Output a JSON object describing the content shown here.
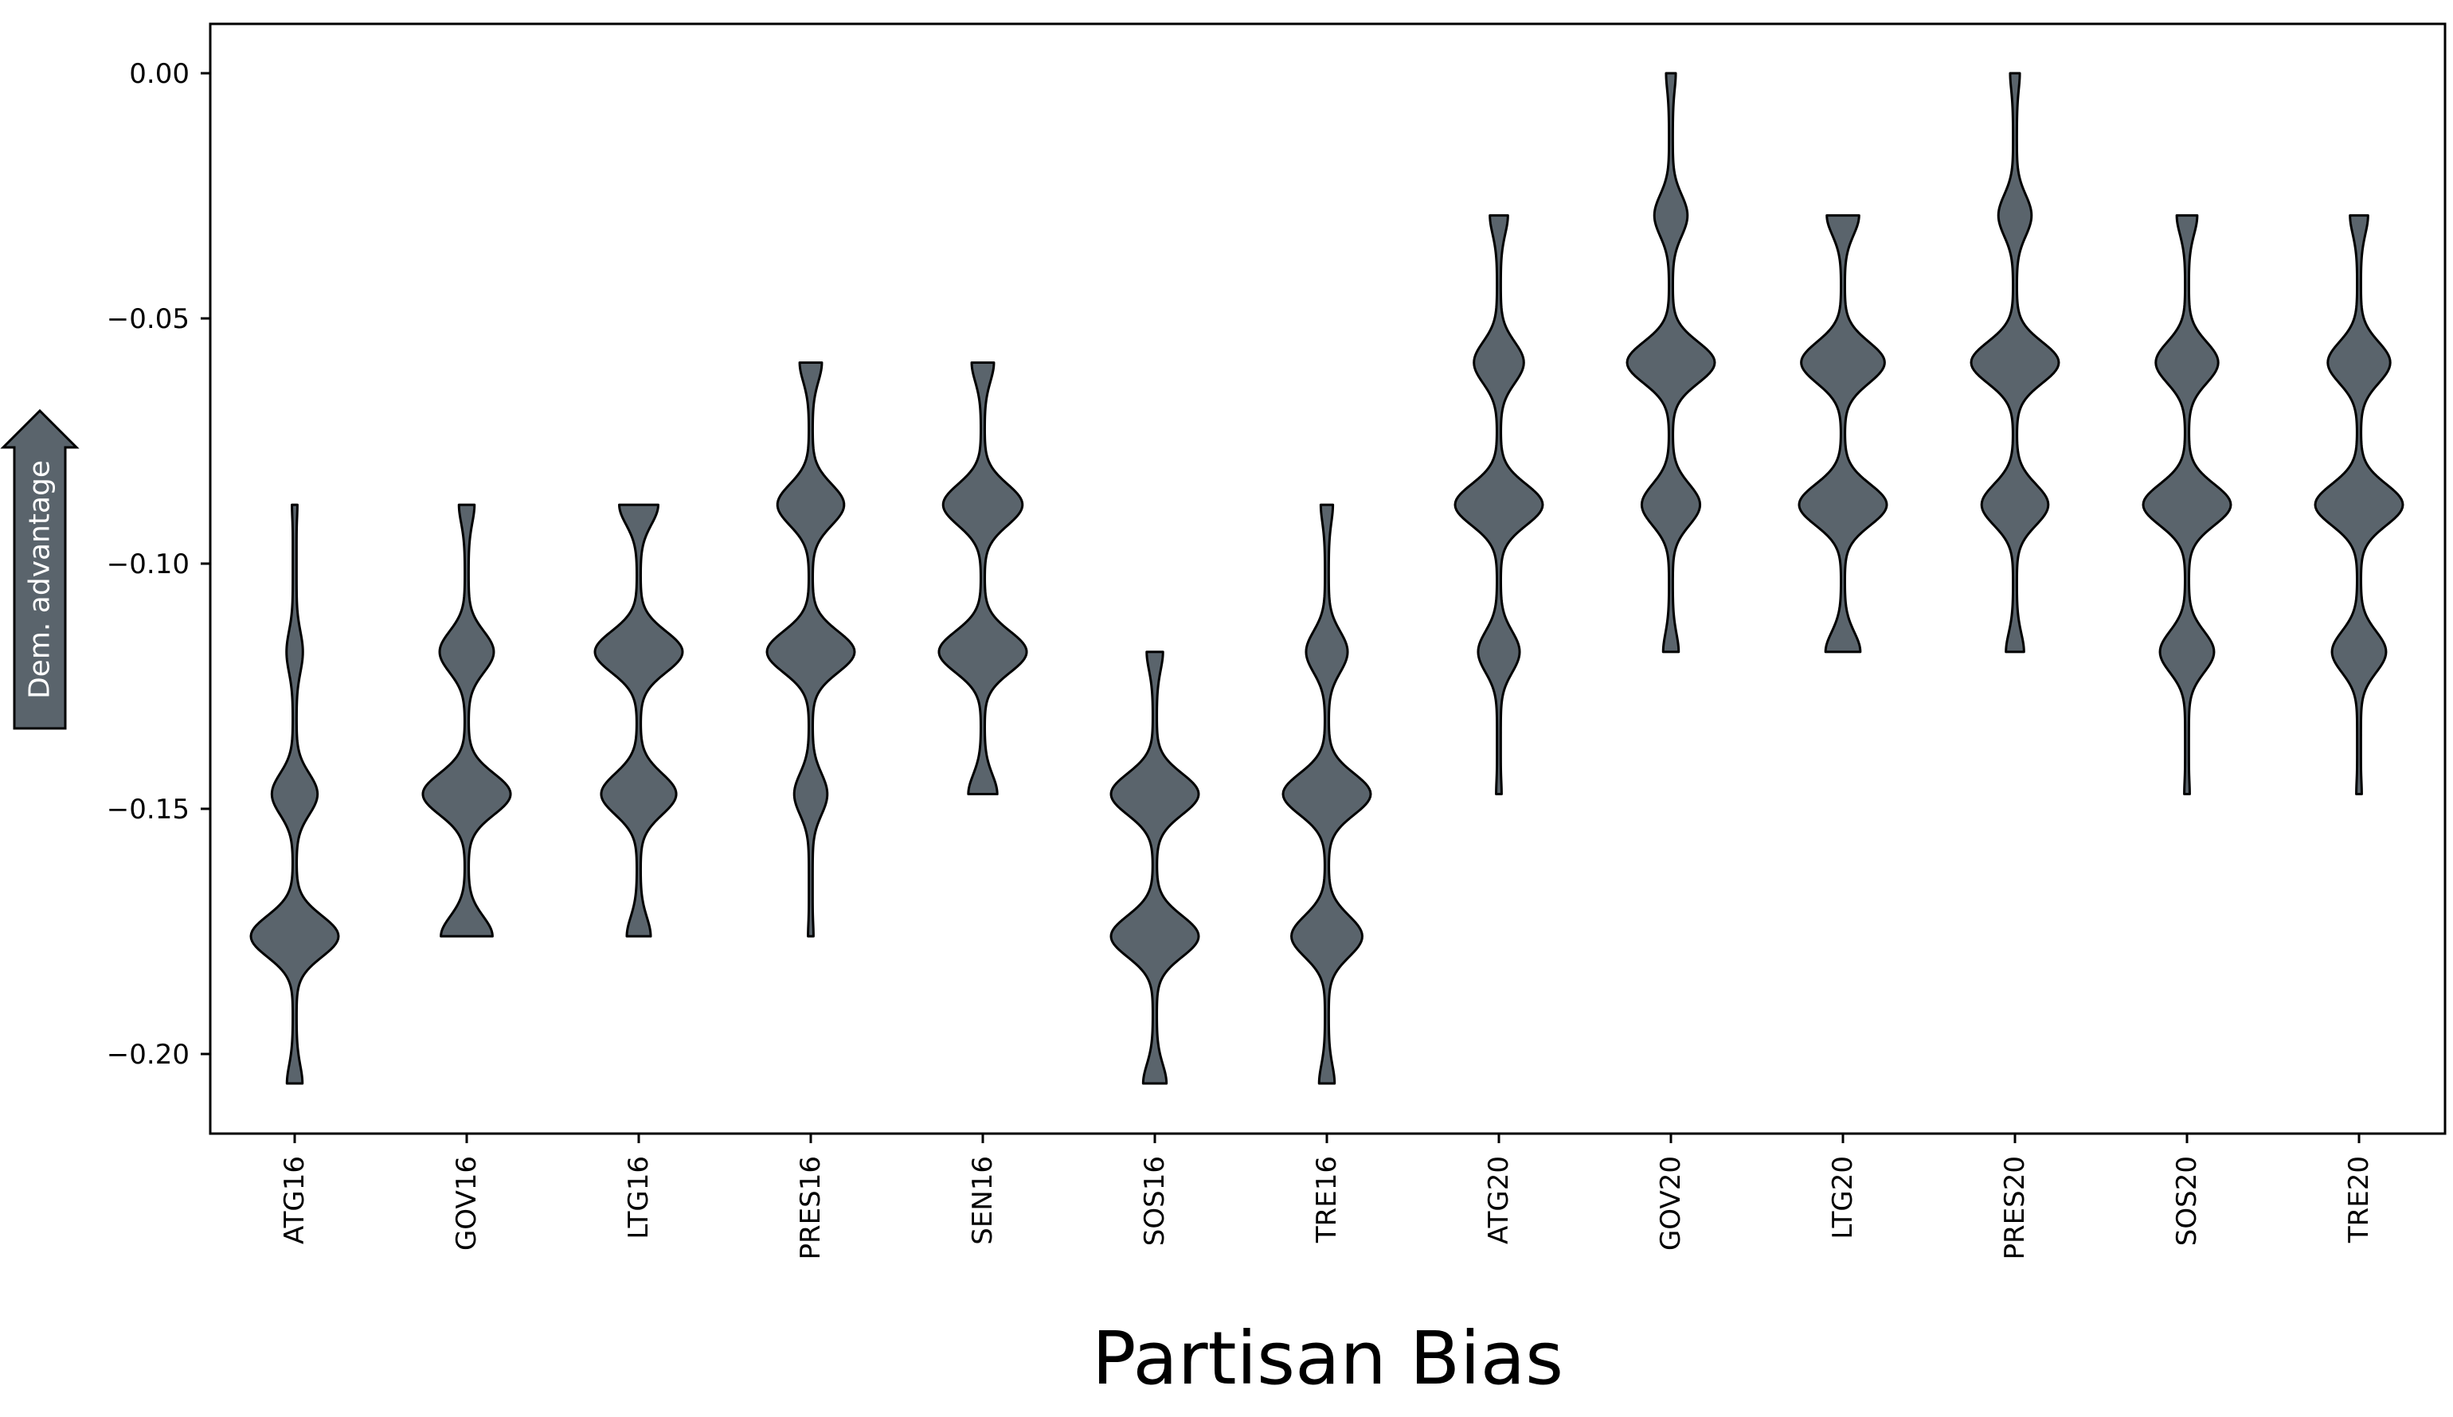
{
  "chart_data": {
    "type": "violin",
    "xlabel": "Partisan Bias",
    "ylabel": "",
    "ylim": [
      -0.216,
      0.01
    ],
    "yticks": [
      0.0,
      -0.05,
      -0.1,
      -0.15,
      -0.2
    ],
    "ytick_labels": [
      "0.00",
      "−0.05",
      "−0.10",
      "−0.15",
      "−0.20"
    ],
    "grid": false,
    "categories": [
      "ATG16",
      "GOV16",
      "LTG16",
      "PRES16",
      "SEN16",
      "SOS16",
      "TRE16",
      "ATG20",
      "GOV20",
      "LTG20",
      "PRES20",
      "SOS20",
      "TRE20"
    ],
    "series": [
      {
        "min": -0.206,
        "max": -0.088,
        "modes": [
          [
            -0.118,
            0.15
          ],
          [
            -0.147,
            0.5
          ],
          [
            -0.176,
            1.0
          ],
          [
            -0.206,
            0.12
          ]
        ]
      },
      {
        "min": -0.176,
        "max": -0.088,
        "modes": [
          [
            -0.088,
            0.12
          ],
          [
            -0.118,
            0.6
          ],
          [
            -0.147,
            1.0
          ],
          [
            -0.176,
            0.55
          ]
        ]
      },
      {
        "min": -0.176,
        "max": -0.088,
        "modes": [
          [
            -0.088,
            0.4
          ],
          [
            -0.118,
            1.0
          ],
          [
            -0.147,
            0.85
          ],
          [
            -0.176,
            0.22
          ]
        ]
      },
      {
        "min": -0.176,
        "max": -0.059,
        "modes": [
          [
            -0.059,
            0.2
          ],
          [
            -0.088,
            0.75
          ],
          [
            -0.118,
            1.0
          ],
          [
            -0.147,
            0.35
          ]
        ]
      },
      {
        "min": -0.147,
        "max": -0.059,
        "modes": [
          [
            -0.059,
            0.2
          ],
          [
            -0.088,
            0.9
          ],
          [
            -0.118,
            1.0
          ],
          [
            -0.147,
            0.28
          ]
        ]
      },
      {
        "min": -0.206,
        "max": -0.118,
        "modes": [
          [
            -0.118,
            0.12
          ],
          [
            -0.147,
            0.95
          ],
          [
            -0.176,
            0.95
          ],
          [
            -0.206,
            0.2
          ]
        ]
      },
      {
        "min": -0.206,
        "max": -0.088,
        "modes": [
          [
            -0.088,
            0.08
          ],
          [
            -0.118,
            0.45
          ],
          [
            -0.147,
            1.0
          ],
          [
            -0.176,
            0.8
          ],
          [
            -0.206,
            0.12
          ]
        ]
      },
      {
        "min": -0.147,
        "max": -0.029,
        "modes": [
          [
            -0.029,
            0.15
          ],
          [
            -0.059,
            0.55
          ],
          [
            -0.088,
            1.0
          ],
          [
            -0.118,
            0.45
          ]
        ]
      },
      {
        "min": -0.118,
        "max": 0.0,
        "modes": [
          [
            0.0,
            0.05
          ],
          [
            -0.029,
            0.35
          ],
          [
            -0.059,
            1.0
          ],
          [
            -0.088,
            0.65
          ],
          [
            -0.118,
            0.12
          ]
        ]
      },
      {
        "min": -0.118,
        "max": -0.029,
        "modes": [
          [
            -0.029,
            0.32
          ],
          [
            -0.059,
            0.95
          ],
          [
            -0.088,
            1.0
          ],
          [
            -0.118,
            0.35
          ]
        ]
      },
      {
        "min": -0.118,
        "max": 0.0,
        "modes": [
          [
            0.0,
            0.05
          ],
          [
            -0.029,
            0.35
          ],
          [
            -0.059,
            1.0
          ],
          [
            -0.088,
            0.75
          ],
          [
            -0.118,
            0.15
          ]
        ]
      },
      {
        "min": -0.147,
        "max": -0.029,
        "modes": [
          [
            -0.029,
            0.18
          ],
          [
            -0.059,
            0.7
          ],
          [
            -0.088,
            1.0
          ],
          [
            -0.118,
            0.6
          ]
        ]
      },
      {
        "min": -0.147,
        "max": -0.029,
        "modes": [
          [
            -0.029,
            0.15
          ],
          [
            -0.059,
            0.7
          ],
          [
            -0.088,
            1.0
          ],
          [
            -0.118,
            0.6
          ]
        ]
      }
    ],
    "violin_color": "#5a646c",
    "edge_color": "#000000",
    "annotation": {
      "text": "Dem. advantage",
      "fill_color": "#5a646c",
      "direction": "up"
    }
  }
}
